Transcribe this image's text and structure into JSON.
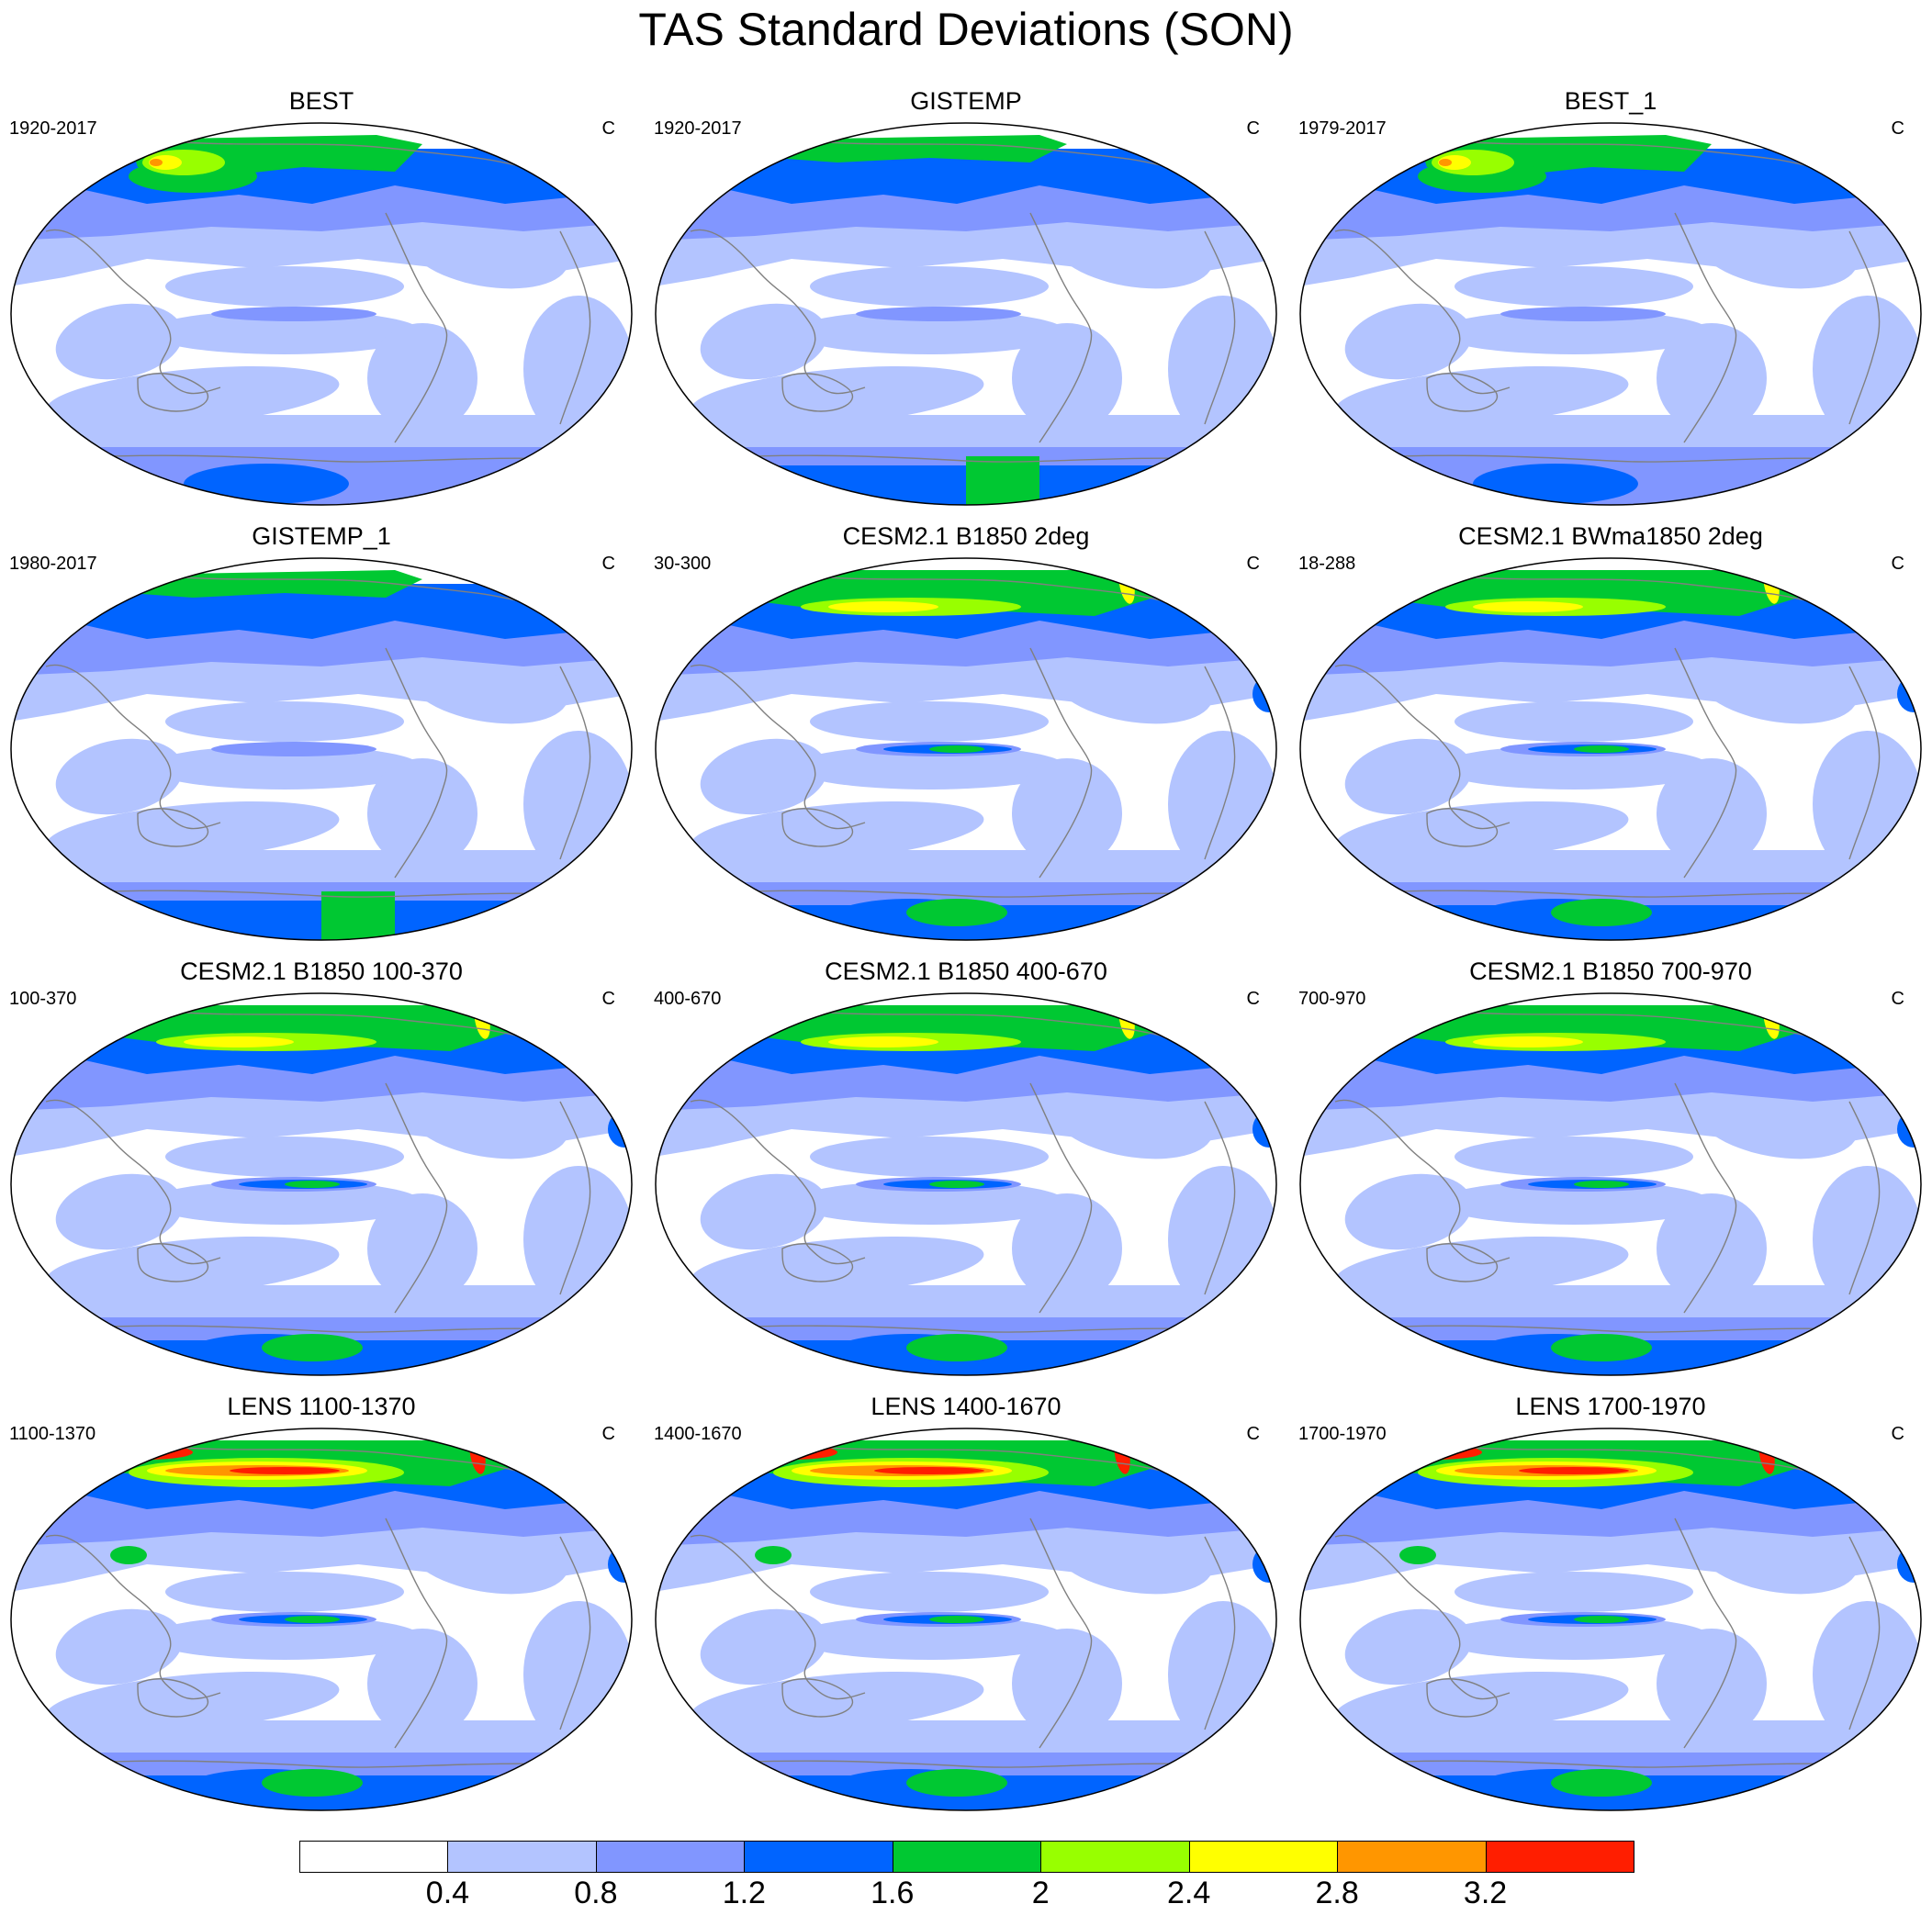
{
  "title": "TAS Standard Deviations (SON)",
  "colors": {
    "levels": [
      "#ffffff",
      "#b3c4ff",
      "#8196ff",
      "#0064ff",
      "#00c832",
      "#98ff00",
      "#ffff00",
      "#ff9600",
      "#ff1e00"
    ],
    "coastline": "#808080",
    "ocean_outline": "#000000"
  },
  "colorbar": {
    "labels": [
      "0.4",
      "0.8",
      "1.2",
      "1.6",
      "2",
      "2.4",
      "2.8",
      "3.2"
    ]
  },
  "panels": [
    {
      "title": "BEST",
      "left": "1920-2017",
      "right": "C",
      "variant": "obs",
      "south": "obs"
    },
    {
      "title": "GISTEMP",
      "left": "1920-2017",
      "right": "C",
      "variant": "obs2",
      "south": "gis"
    },
    {
      "title": "BEST_1",
      "left": "1979-2017",
      "right": "C",
      "variant": "obs",
      "south": "obs"
    },
    {
      "title": "GISTEMP_1",
      "left": "1980-2017",
      "right": "C",
      "variant": "obs2",
      "south": "gis"
    },
    {
      "title": "CESM2.1 B1850 2deg",
      "left": "30-300",
      "right": "C",
      "variant": "model",
      "south": "model"
    },
    {
      "title": "CESM2.1 BWma1850 2deg",
      "left": "18-288",
      "right": "C",
      "variant": "model",
      "south": "model"
    },
    {
      "title": "CESM2.1 B1850 100-370",
      "left": "100-370",
      "right": "C",
      "variant": "model",
      "south": "model"
    },
    {
      "title": "CESM2.1 B1850 400-670",
      "left": "400-670",
      "right": "C",
      "variant": "model",
      "south": "model"
    },
    {
      "title": "CESM2.1 B1850 700-970",
      "left": "700-970",
      "right": "C",
      "variant": "model",
      "south": "model"
    },
    {
      "title": "LENS 1100-1370",
      "left": "1100-1370",
      "right": "C",
      "variant": "lens",
      "south": "lens"
    },
    {
      "title": "LENS 1400-1670",
      "left": "1400-1670",
      "right": "C",
      "variant": "lens",
      "south": "lens"
    },
    {
      "title": "LENS 1700-1970",
      "left": "1700-1970",
      "right": "C",
      "variant": "lens",
      "south": "lens"
    }
  ]
}
